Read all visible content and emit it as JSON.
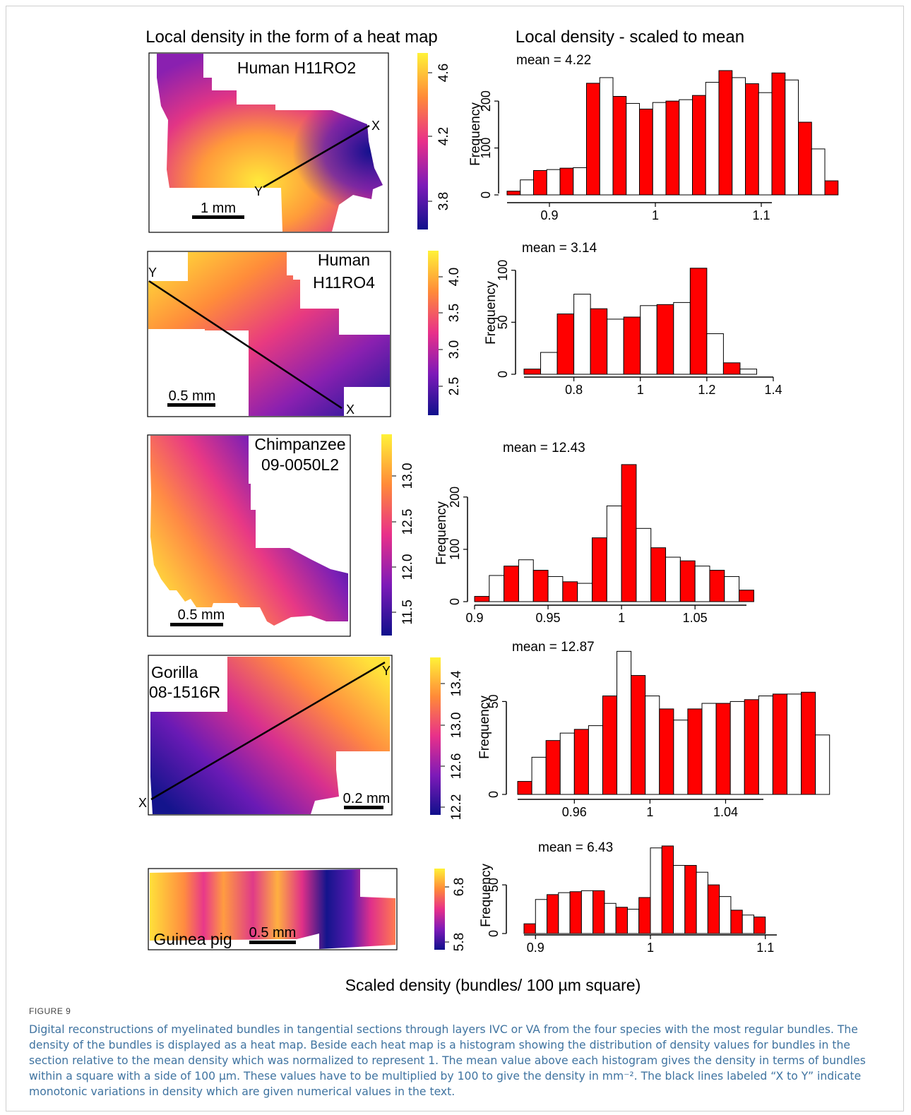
{
  "titles": {
    "left": "Local density in the form of a heat map",
    "right": "Local density - scaled to mean"
  },
  "panels": [
    {
      "label_lines": [
        "Human H11RO2"
      ],
      "scale_bar": "1 mm",
      "line_ends": [
        "X",
        "Y"
      ],
      "colorbar_ticks": [
        "3.8",
        "4.2",
        "4.6"
      ],
      "mean_label": "mean = 4.22",
      "ylabel": "Frequency",
      "y_ticks": [
        "0",
        "100",
        "200"
      ],
      "x_ticks": [
        "0.9",
        "1",
        "1.1"
      ]
    },
    {
      "label_lines": [
        "Human",
        "H11RO4"
      ],
      "scale_bar": "0.5 mm",
      "line_ends": [
        "X",
        "Y"
      ],
      "colorbar_ticks": [
        "2.5",
        "3.0",
        "3.5",
        "4.0"
      ],
      "mean_label": "mean = 3.14",
      "ylabel": "Frequency",
      "y_ticks": [
        "0",
        "50",
        "100"
      ],
      "x_ticks": [
        "0.8",
        "1",
        "1.2",
        "1.4"
      ]
    },
    {
      "label_lines": [
        "Chimpanzee",
        "09-0050L2"
      ],
      "scale_bar": "0.5 mm",
      "line_ends": [],
      "colorbar_ticks": [
        "11.5",
        "12.0",
        "12.5",
        "13.0"
      ],
      "mean_label": "mean = 12.43",
      "ylabel": "Frequency",
      "y_ticks": [
        "0",
        "100",
        "200"
      ],
      "x_ticks": [
        "0.9",
        "0.95",
        "1",
        "1.05"
      ]
    },
    {
      "label_lines": [
        "Gorilla",
        "08-1516R"
      ],
      "scale_bar": "0.2 mm",
      "line_ends": [
        "X",
        "Y"
      ],
      "colorbar_ticks": [
        "12.2",
        "12.6",
        "13.0",
        "13.4"
      ],
      "mean_label": "mean = 12.87",
      "ylabel": "Frequency",
      "y_ticks": [
        "0",
        "50"
      ],
      "x_ticks": [
        "0.96",
        "1",
        "1.04"
      ]
    },
    {
      "label_lines": [
        "Guinea pig"
      ],
      "scale_bar": "0.5 mm",
      "line_ends": [],
      "colorbar_ticks": [
        "5.8",
        "6.8"
      ],
      "mean_label": "mean = 6.43",
      "ylabel": "Frequency",
      "y_ticks": [
        "0",
        "50"
      ],
      "x_ticks": [
        "0.9",
        "1",
        "1.1"
      ]
    }
  ],
  "chart_data": [
    {
      "type": "bar",
      "title": "mean = 4.22",
      "xlabel": "Scaled density (bundles/ 100 µm square)",
      "ylabel": "Frequency",
      "xlim": [
        0.86,
        1.11
      ],
      "ylim": [
        0,
        280
      ],
      "bin_width": 0.0125,
      "bin_start": 0.86,
      "values": [
        8,
        32,
        52,
        54,
        57,
        58,
        238,
        250,
        210,
        195,
        183,
        197,
        200,
        203,
        212,
        240,
        265,
        250,
        237,
        218,
        260,
        245,
        155,
        98,
        30
      ],
      "fill_colors": [
        "red",
        "white"
      ]
    },
    {
      "type": "bar",
      "title": "mean = 3.14",
      "xlabel": "Scaled density (bundles/ 100 µm square)",
      "ylabel": "Frequency",
      "xlim": [
        0.65,
        1.4
      ],
      "ylim": [
        0,
        110
      ],
      "bin_width": 0.05,
      "bin_start": 0.65,
      "values": [
        5,
        21,
        58,
        77,
        63,
        53,
        55,
        66,
        67,
        69,
        102,
        39,
        11,
        5
      ],
      "fill_colors": [
        "red",
        "white"
      ]
    },
    {
      "type": "bar",
      "title": "mean = 12.43",
      "xlabel": "Scaled density (bundles/ 100 µm square)",
      "ylabel": "Frequency",
      "xlim": [
        0.9,
        1.085
      ],
      "ylim": [
        0,
        270
      ],
      "bin_width": 0.01,
      "bin_start": 0.9,
      "values": [
        10,
        50,
        68,
        80,
        60,
        48,
        38,
        35,
        122,
        183,
        262,
        140,
        103,
        85,
        78,
        68,
        60,
        48,
        22
      ],
      "fill_colors": [
        "red",
        "white"
      ]
    },
    {
      "type": "bar",
      "title": "mean = 12.87",
      "xlabel": "Scaled density (bundles/ 100 µm square)",
      "ylabel": "Frequency",
      "xlim": [
        0.93,
        1.06
      ],
      "ylim": [
        0,
        76
      ],
      "bin_width": 0.0075,
      "bin_start": 0.93,
      "values": [
        7,
        20,
        29,
        33,
        35,
        37,
        53,
        77,
        64,
        53,
        46,
        40,
        46,
        49,
        49,
        50,
        51,
        53,
        54,
        54,
        55,
        32
      ],
      "fill_colors": [
        "red",
        "white"
      ]
    },
    {
      "type": "bar",
      "title": "mean = 6.43",
      "xlabel": "Scaled density (bundles/ 100 µm square)",
      "ylabel": "Frequency",
      "xlim": [
        0.89,
        1.11
      ],
      "ylim": [
        0,
        90
      ],
      "bin_width": 0.01,
      "bin_start": 0.89,
      "values": [
        10,
        35,
        40,
        42,
        43,
        44,
        44,
        31,
        27,
        25,
        37,
        88,
        90,
        70,
        70,
        63,
        50,
        38,
        24,
        19,
        17
      ],
      "fill_colors": [
        "red",
        "white"
      ]
    }
  ],
  "shared_xlabel": "Scaled density (bundles/ 100 µm square)",
  "colors": {
    "bar_red": "#ff0000",
    "bar_white": "#ffffff",
    "heat_low": "#1a1a8c",
    "heat_mid": "#e8368a",
    "heat_high": "#fff030",
    "caption_text": "#3f73a0"
  },
  "figure_label": "FIGURE 9",
  "caption": "Digital reconstructions of myelinated bundles in tangential sections through layers IVC or VA from the four species with the most regular bundles. The density of the bundles is displayed as a heat map. Beside each heat map is a histogram showing the distribution of density values for bundles in the section relative to the mean density which was normalized to represent 1. The mean value above each histogram gives the density in terms of bundles within a square with a side of 100 µm. These values have to be multiplied by 100 to give the density in mm⁻². The black lines labeled “X to Y” indicate monotonic variations in density which are given numerical values in the text."
}
